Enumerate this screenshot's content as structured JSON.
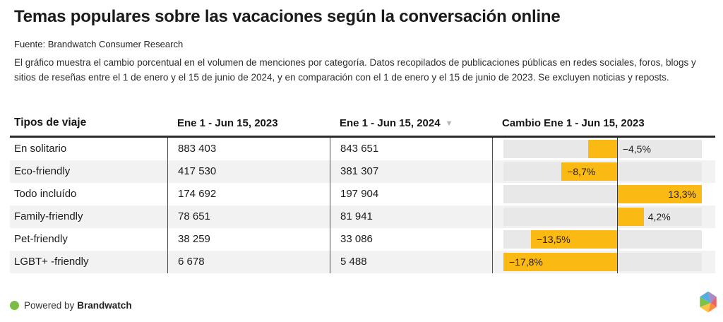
{
  "page": {
    "title": "Temas populares sobre las vacaciones según la conversación online",
    "source": "Fuente: Brandwatch Consumer Research",
    "description": "El gráfico muestra el cambio porcentual en el volumen de menciones por categoría. Datos recopilados de publicaciones públicas en redes sociales, foros, blogs y sitios de reseñas entre el 1 de enero y el 15 de junio de 2024, y en comparación con el 1 de enero y el 15 de junio de 2023. Se excluyen noticias y reposts."
  },
  "table": {
    "columns": {
      "trip_type": "Tipos de viaje",
      "period_2023": "Ene 1 - Jun 15, 2023",
      "period_2024": "Ene 1 - Jun 15, 2024",
      "change": "Cambio Ene 1 - Jun 15, 2023"
    },
    "sort_icon": "▼",
    "rows": [
      {
        "label": "En solitario",
        "v2023": "883 403",
        "v2024": "843 651",
        "change_pct": -4.5,
        "change_label": "−4,5%"
      },
      {
        "label": "Eco-friendly",
        "v2023": "417 530",
        "v2024": "381 307",
        "change_pct": -8.7,
        "change_label": "−8,7%"
      },
      {
        "label": "Todo incluído",
        "v2023": "174 692",
        "v2024": "197 904",
        "change_pct": 13.3,
        "change_label": "13,3%"
      },
      {
        "label": "Family-friendly",
        "v2023": "78 651",
        "v2024": "81 941",
        "change_pct": 4.2,
        "change_label": "4,2%"
      },
      {
        "label": "Pet-friendly",
        "v2023": "38 259",
        "v2024": "33 086",
        "change_pct": -13.5,
        "change_label": "−13,5%"
      },
      {
        "label": "LGBT+ -friendly",
        "v2023": "6 678",
        "v2024": "5 488",
        "change_pct": -17.8,
        "change_label": "−17,8%"
      }
    ]
  },
  "chart_data": {
    "type": "table",
    "title": "Temas populares sobre las vacaciones según la conversación online",
    "categories": [
      "En solitario",
      "Eco-friendly",
      "Todo incluído",
      "Family-friendly",
      "Pet-friendly",
      "LGBT+ -friendly"
    ],
    "series": [
      {
        "name": "Ene 1 - Jun 15, 2023",
        "values": [
          883403,
          417530,
          174692,
          78651,
          38259,
          6678
        ]
      },
      {
        "name": "Ene 1 - Jun 15, 2024",
        "values": [
          843651,
          381307,
          197904,
          81941,
          33086,
          5488
        ]
      },
      {
        "name": "Cambio Ene 1 - Jun 15, 2023 (%)",
        "values": [
          -4.5,
          -8.7,
          13.3,
          4.2,
          -13.5,
          -17.8
        ]
      }
    ],
    "bar_axis_range": [
      -17.8,
      13.3
    ],
    "bar_color": "#FBB914",
    "sorted_by": "Ene 1 - Jun 15, 2024",
    "sort_direction": "desc"
  },
  "footer": {
    "powered_by": "Powered by",
    "brand": "Brandwatch",
    "dot_color": "#7CBB45"
  },
  "colors": {
    "bar": "#FBB914",
    "track": "#E8E8E8",
    "row_stripe": "#F2F2F2",
    "zero_line": "#3A3A3A",
    "header_border": "#2B2B2B",
    "col_separator": "#4D4D4D",
    "sort_icon": "#B5B5B5"
  }
}
